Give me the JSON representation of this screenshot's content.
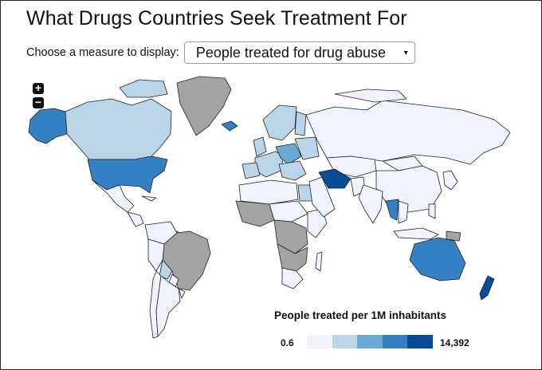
{
  "title": "What Drugs Countries Seek Treatment For",
  "controls": {
    "label": "Choose a measure to display:",
    "selected": "People treated for drug abuse",
    "arrow": "▾"
  },
  "zoom": {
    "in": "+",
    "out": "−"
  },
  "legend": {
    "title": "People treated per 1M inhabitants",
    "min": "0.6",
    "max": "14,392",
    "colors": [
      "#eef3fd",
      "#bad5e8",
      "#6aaad4",
      "#3381c2",
      "#084b97"
    ]
  },
  "palette": {
    "nodata": "#a3a3a3",
    "c0": "#eef3fd",
    "c1": "#bad5e8",
    "c2": "#6aaad4",
    "c3": "#3381c2",
    "c4": "#084b97",
    "border": "#222222"
  }
}
